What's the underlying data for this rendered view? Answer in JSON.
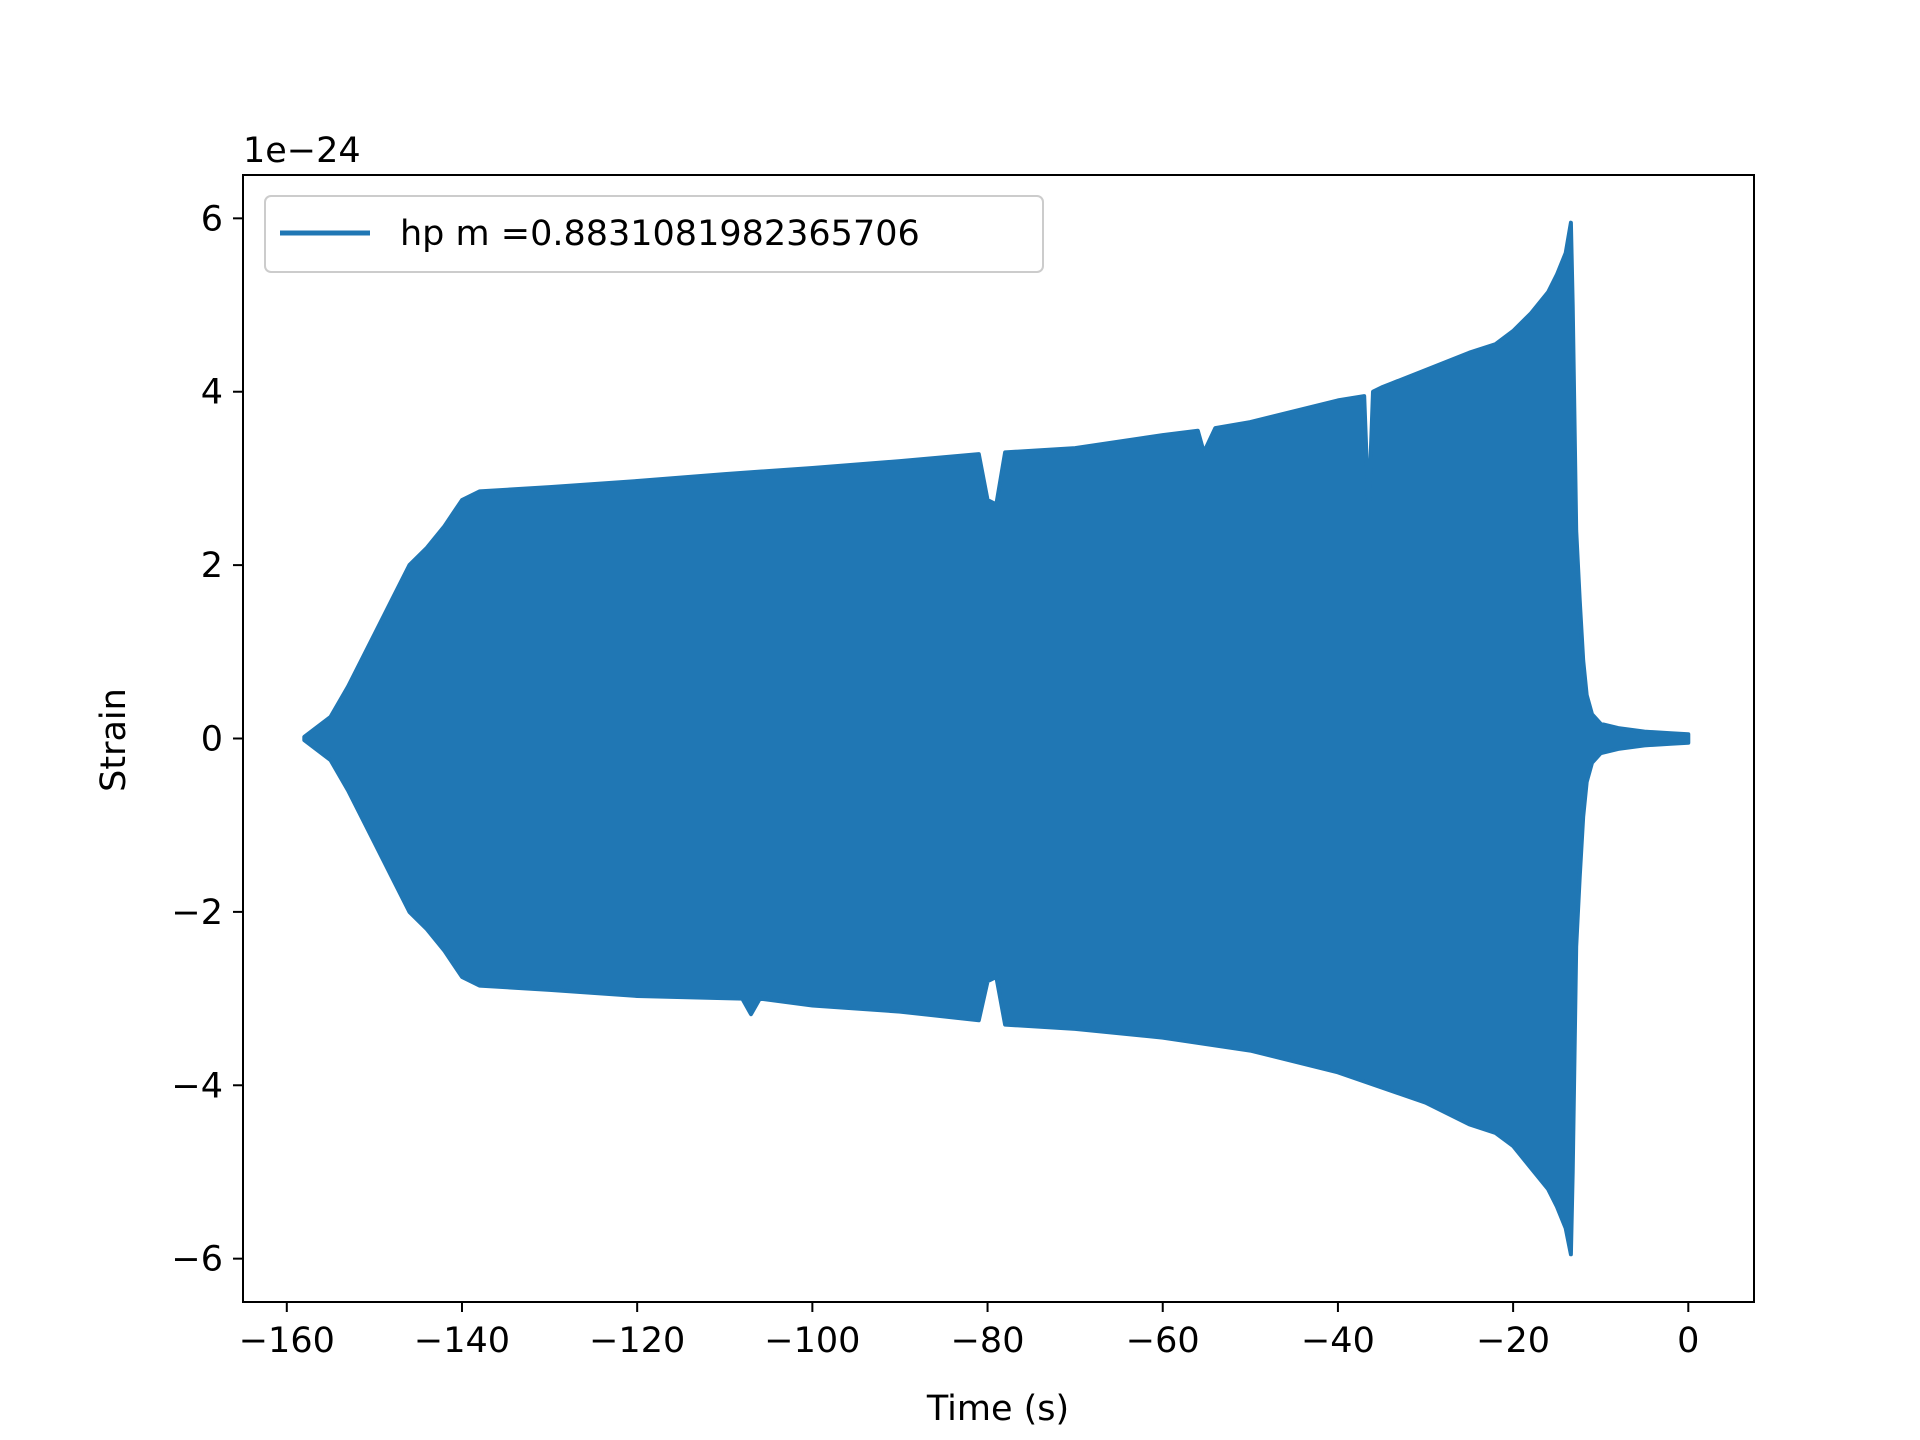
{
  "chart_data": {
    "type": "line",
    "xlabel": "Time (s)",
    "ylabel": "Strain",
    "offset_label": "1e−24",
    "y_scale_exponent": -24,
    "xlim": [
      -165,
      7.5
    ],
    "ylim": [
      -6.5,
      6.5
    ],
    "x_ticks": [
      -160,
      -140,
      -120,
      -100,
      -80,
      -60,
      -40,
      -20,
      0
    ],
    "x_tick_labels": [
      "−160",
      "−140",
      "−120",
      "−100",
      "−80",
      "−60",
      "−40",
      "−20",
      "0"
    ],
    "y_ticks": [
      -6,
      -4,
      -2,
      0,
      2,
      4,
      6
    ],
    "y_tick_labels": [
      "−6",
      "−4",
      "−2",
      "0",
      "2",
      "4",
      "6"
    ],
    "grid": false,
    "legend_position": "upper-left",
    "color": "#2077b4",
    "series": [
      {
        "name": "hp m =0.8831081982365706",
        "upper_envelope": {
          "x": [
            -158,
            -155,
            -153,
            -150,
            -148,
            -146,
            -144,
            -142,
            -141,
            -140,
            -138,
            -130,
            -120,
            -110,
            -100,
            -90,
            -81,
            -80,
            -79,
            -78,
            -70,
            -60,
            -56,
            -55.3,
            -54,
            -50,
            -40,
            -37,
            -36.5,
            -36,
            -35,
            -30,
            -25,
            -22,
            -20,
            -18,
            -16,
            -15,
            -14,
            -13.4,
            -13.2,
            -12.8,
            -12.4,
            -12,
            -11.6,
            -11,
            -10,
            -8,
            -5,
            -2,
            0
          ],
          "y": [
            0.02,
            0.25,
            0.6,
            1.2,
            1.6,
            2.0,
            2.2,
            2.45,
            2.6,
            2.75,
            2.85,
            2.9,
            2.97,
            3.05,
            3.12,
            3.2,
            3.28,
            2.75,
            2.7,
            3.3,
            3.35,
            3.5,
            3.55,
            3.3,
            3.58,
            3.65,
            3.9,
            3.95,
            2.6,
            4.0,
            4.05,
            4.25,
            4.45,
            4.55,
            4.7,
            4.9,
            5.15,
            5.35,
            5.6,
            5.95,
            5.0,
            2.4,
            1.6,
            0.9,
            0.5,
            0.28,
            0.17,
            0.12,
            0.08,
            0.06,
            0.05
          ]
        },
        "lower_envelope": {
          "x": [
            -158,
            -155,
            -153,
            -150,
            -148,
            -146,
            -144,
            -142,
            -141,
            -140,
            -138,
            -130,
            -120,
            -108,
            -107,
            -106,
            -100,
            -90,
            -81,
            -80,
            -79,
            -78,
            -70,
            -60,
            -50,
            -40,
            -30,
            -25,
            -22,
            -20,
            -18,
            -16,
            -15,
            -14,
            -13.4,
            -13.2,
            -12.8,
            -12.4,
            -12,
            -11.6,
            -11,
            -10,
            -8,
            -5,
            -2,
            0
          ],
          "y": [
            -0.02,
            -0.25,
            -0.6,
            -1.2,
            -1.6,
            -2.0,
            -2.2,
            -2.45,
            -2.6,
            -2.75,
            -2.85,
            -2.9,
            -2.97,
            -3.0,
            -3.18,
            -3.0,
            -3.08,
            -3.15,
            -3.25,
            -2.8,
            -2.75,
            -3.3,
            -3.35,
            -3.45,
            -3.6,
            -3.85,
            -4.2,
            -4.45,
            -4.55,
            -4.7,
            -4.95,
            -5.2,
            -5.4,
            -5.65,
            -5.95,
            -5.0,
            -2.4,
            -1.6,
            -0.9,
            -0.5,
            -0.28,
            -0.17,
            -0.12,
            -0.08,
            -0.06,
            -0.05
          ]
        }
      }
    ]
  }
}
